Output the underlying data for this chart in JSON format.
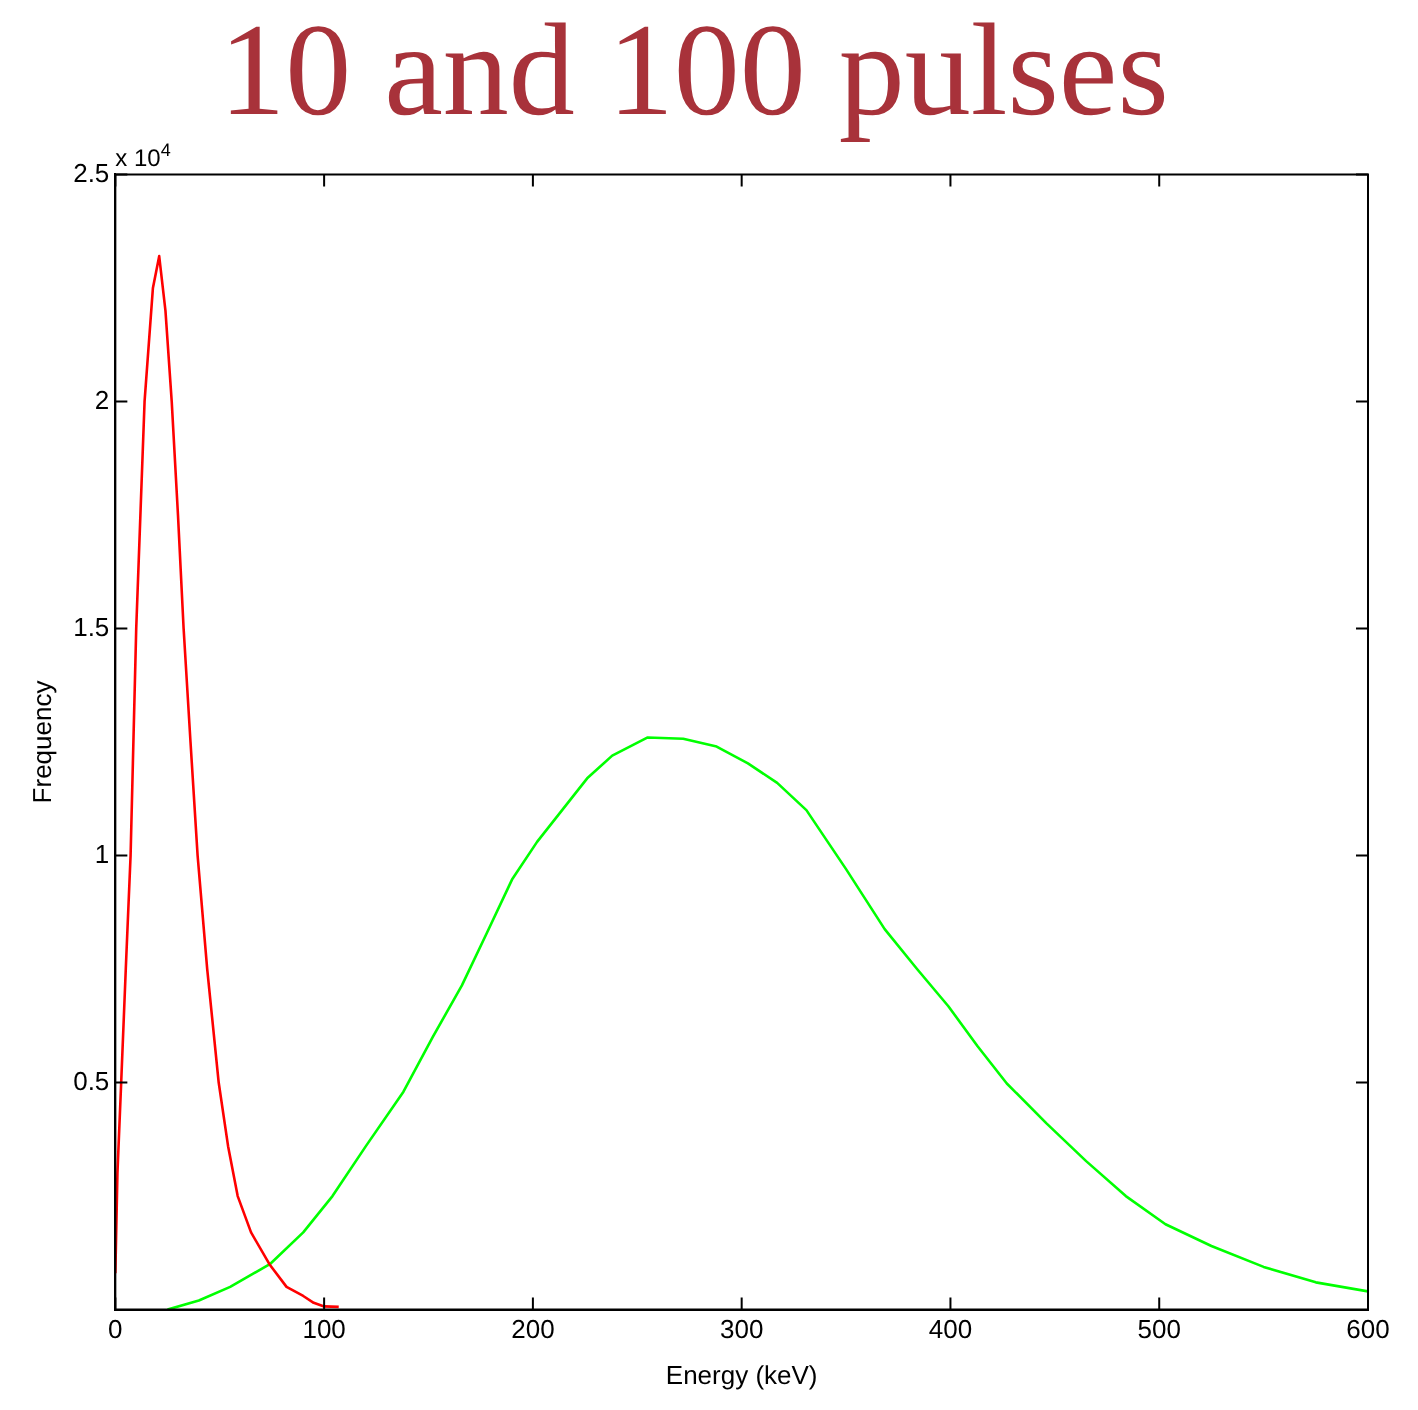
{
  "chart_data": {
    "type": "line",
    "title": "10 and 100 pulses",
    "xlabel": "Energy (keV)",
    "ylabel": "Frequency",
    "annotations": [
      "x 10$^{4}$"
    ],
    "xlim": [
      0,
      600
    ],
    "xticks": [
      0,
      100,
      200,
      300,
      400,
      500,
      600
    ],
    "ylim": [
      0,
      2.5
    ],
    "yticks": [
      0.5,
      1,
      1.5,
      2,
      2.5
    ],
    "marker": "none",
    "line_style": "solid",
    "legend": false,
    "series": [
      {
        "color": "#ff0000",
        "x": [
          0,
          1,
          2.8,
          5,
          7.3,
          10,
          14,
          18,
          21,
          24,
          27,
          30,
          32.7,
          36,
          39.4,
          44,
          49.5,
          54,
          58.6,
          65,
          73.8,
          82,
          90,
          95,
          100,
          107
        ],
        "values": [
          0.08,
          0.3,
          0.5,
          0.75,
          1.0,
          1.5,
          2.0,
          2.25,
          2.32,
          2.2,
          2.0,
          1.75,
          1.5,
          1.25,
          1.0,
          0.75,
          0.5,
          0.36,
          0.25,
          0.17,
          0.1,
          0.05,
          0.03,
          0.015,
          0.007,
          0.006
        ]
      },
      {
        "color": "#00ff00",
        "x": [
          25,
          40,
          55,
          74,
          90,
          104,
          120,
          138,
          152,
          166,
          178,
          190,
          202,
          214,
          226,
          238,
          255,
          272,
          288,
          303,
          317,
          331,
          350,
          368.5,
          384,
          399,
          413,
          427,
          446,
          465,
          484,
          503,
          525,
          550,
          575,
          600
        ],
        "values": [
          0,
          0.02,
          0.05,
          0.1,
          0.17,
          0.25,
          0.36,
          0.48,
          0.6,
          0.714,
          0.83,
          0.947,
          1.03,
          1.1,
          1.17,
          1.22,
          1.26,
          1.257,
          1.24,
          1.203,
          1.16,
          1.1,
          0.97,
          0.838,
          0.75,
          0.668,
          0.58,
          0.498,
          0.41,
          0.327,
          0.25,
          0.188,
          0.14,
          0.094,
          0.06,
          0.04
        ]
      }
    ]
  }
}
